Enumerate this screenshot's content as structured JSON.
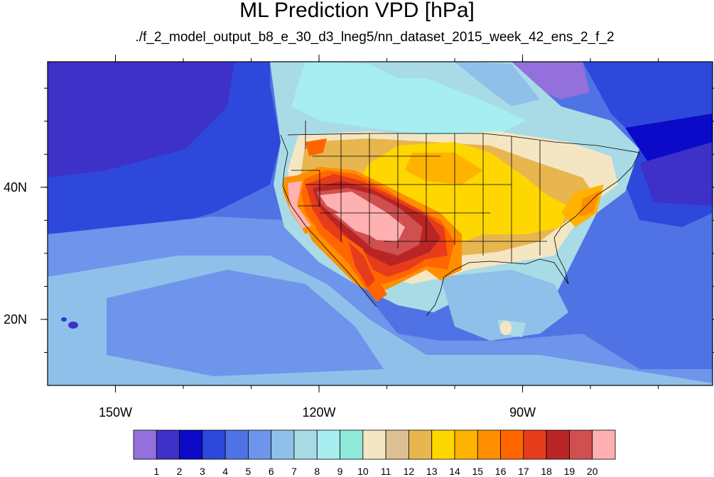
{
  "title": "ML Prediction VPD [hPa]",
  "subtitle": "./f_2_model_output_b8_e_30_d3_lneg5/nn_dataset_2015_week_42_ens_2_f_2",
  "map": {
    "lon_range": [
      -160,
      -62
    ],
    "lat_range": [
      10,
      59
    ],
    "x_ticks": [
      {
        "lon": -150,
        "label": "150W"
      },
      {
        "lon": -120,
        "label": "120W"
      },
      {
        "lon": -90,
        "label": "90W"
      }
    ],
    "y_ticks": [
      {
        "lat": 40,
        "label": "40N"
      },
      {
        "lat": 20,
        "label": "20N"
      }
    ],
    "minor_x_ticks": [
      -150,
      -140,
      -130,
      -120,
      -110,
      -100,
      -90,
      -80,
      -70
    ],
    "minor_y_ticks": [
      15,
      20,
      25,
      30,
      35,
      40,
      45,
      50,
      55
    ]
  },
  "colorbar": {
    "colors": [
      "#9370db",
      "#3d31c8",
      "#0a0ac8",
      "#2e48dc",
      "#4f73e4",
      "#6e94eb",
      "#8fc0ea",
      "#a9dbe6",
      "#a6eef0",
      "#8fe8d8",
      "#f5e6c3",
      "#dcc094",
      "#e8b64f",
      "#ffd700",
      "#ffb300",
      "#ff8f00",
      "#ff6600",
      "#e63c1c",
      "#b92525",
      "#d05050",
      "#ffb0b0"
    ],
    "labels": [
      "1",
      "2",
      "3",
      "4",
      "5",
      "6",
      "7",
      "8",
      "9",
      "10",
      "11",
      "12",
      "13",
      "14",
      "15",
      "16",
      "17",
      "18",
      "19",
      "20"
    ]
  }
}
